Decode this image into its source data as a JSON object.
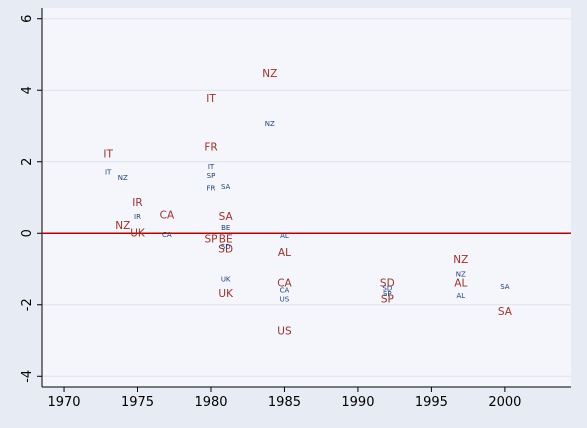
{
  "chart_data": {
    "type": "scatter",
    "title": "",
    "xlabel": "",
    "ylabel": "",
    "xlim": [
      1968.5,
      2004.5
    ],
    "ylim": [
      -4.3,
      6.3
    ],
    "xticks": [
      1970,
      1975,
      1980,
      1985,
      1990,
      1995,
      2000
    ],
    "yticks": [
      -4,
      -2,
      0,
      2,
      4,
      6
    ],
    "grid": true,
    "reference_line": {
      "y": 0,
      "color": "#c00000"
    },
    "colors": {
      "large_marker": "#a0302a",
      "small_marker": "#1f3f7a"
    },
    "series": [
      {
        "marker_size": "large",
        "points": [
          {
            "x": 1973,
            "y": 2.2,
            "label": "IT"
          },
          {
            "x": 1975,
            "y": 0.85,
            "label": "IR"
          },
          {
            "x": 1974,
            "y": 0.2,
            "label": "NZ"
          },
          {
            "x": 1975,
            "y": 0.0,
            "label": "UK"
          },
          {
            "x": 1977,
            "y": 0.5,
            "label": "CA"
          },
          {
            "x": 1980,
            "y": 3.75,
            "label": "IT"
          },
          {
            "x": 1980,
            "y": 2.4,
            "label": "FR"
          },
          {
            "x": 1980,
            "y": -0.18,
            "label": "SP"
          },
          {
            "x": 1981,
            "y": 0.45,
            "label": "SA"
          },
          {
            "x": 1981,
            "y": -0.18,
            "label": "BE"
          },
          {
            "x": 1981,
            "y": -0.45,
            "label": "SD"
          },
          {
            "x": 1981,
            "y": -1.7,
            "label": "UK"
          },
          {
            "x": 1984,
            "y": 4.45,
            "label": "NZ"
          },
          {
            "x": 1985,
            "y": -0.55,
            "label": "AL"
          },
          {
            "x": 1985,
            "y": -1.4,
            "label": "CA"
          },
          {
            "x": 1985,
            "y": -2.75,
            "label": "US"
          },
          {
            "x": 1992,
            "y": -1.4,
            "label": "SD"
          },
          {
            "x": 1992,
            "y": -1.85,
            "label": "SP"
          },
          {
            "x": 1997,
            "y": -0.75,
            "label": "NZ"
          },
          {
            "x": 1997,
            "y": -1.4,
            "label": "AL"
          },
          {
            "x": 2000,
            "y": -2.2,
            "label": "SA"
          }
        ]
      },
      {
        "marker_size": "small",
        "points": [
          {
            "x": 1973,
            "y": 1.7,
            "label": "IT"
          },
          {
            "x": 1974,
            "y": 1.55,
            "label": "NZ"
          },
          {
            "x": 1975,
            "y": 0.45,
            "label": "IR"
          },
          {
            "x": 1977,
            "y": -0.05,
            "label": "CA"
          },
          {
            "x": 1980,
            "y": 1.85,
            "label": "IT"
          },
          {
            "x": 1980,
            "y": 1.6,
            "label": "SP"
          },
          {
            "x": 1980,
            "y": 1.25,
            "label": "FR"
          },
          {
            "x": 1981,
            "y": 1.3,
            "label": "SA"
          },
          {
            "x": 1981,
            "y": 0.15,
            "label": "BE"
          },
          {
            "x": 1981,
            "y": -0.38,
            "label": "SD"
          },
          {
            "x": 1981,
            "y": -1.3,
            "label": "UK"
          },
          {
            "x": 1984,
            "y": 3.05,
            "label": "NZ"
          },
          {
            "x": 1985,
            "y": -0.07,
            "label": "AL"
          },
          {
            "x": 1985,
            "y": -1.6,
            "label": "CA"
          },
          {
            "x": 1985,
            "y": -1.85,
            "label": "US"
          },
          {
            "x": 1992,
            "y": -1.55,
            "label": "SD"
          },
          {
            "x": 1992,
            "y": -1.7,
            "label": "SP"
          },
          {
            "x": 1997,
            "y": -1.15,
            "label": "NZ"
          },
          {
            "x": 1997,
            "y": -1.75,
            "label": "AL"
          },
          {
            "x": 2000,
            "y": -1.5,
            "label": "SA"
          }
        ]
      }
    ]
  }
}
